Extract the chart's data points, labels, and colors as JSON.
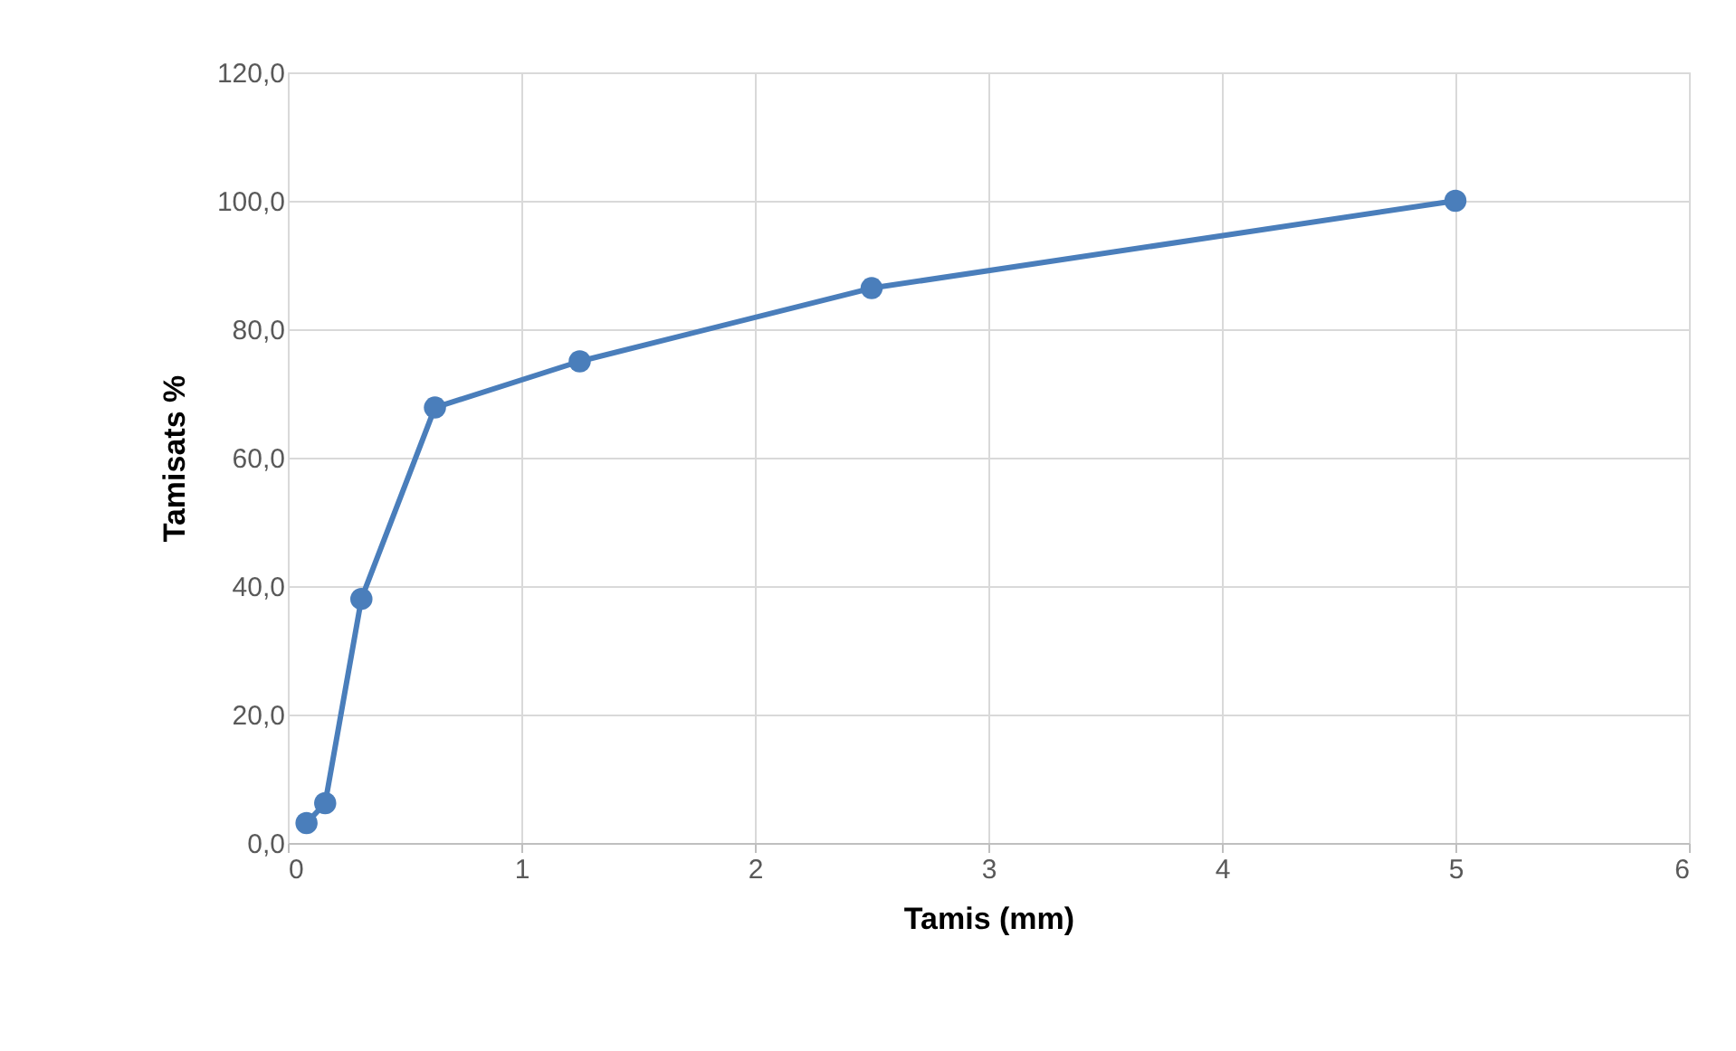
{
  "chart_data": {
    "type": "line",
    "xlabel": "Tamis (mm)",
    "ylabel": "Tamisats %",
    "x": [
      0.08,
      0.16,
      0.315,
      0.63,
      1.25,
      2.5,
      5
    ],
    "series": [
      {
        "color": "#4a7ebb",
        "values": [
          3.1,
          6.2,
          38.0,
          67.8,
          75.0,
          86.4,
          100.0
        ]
      }
    ],
    "xlim": [
      0,
      6
    ],
    "xticks": [
      0,
      1,
      2,
      3,
      4,
      5,
      6
    ],
    "ylim": [
      0,
      120
    ],
    "yticks": [
      {
        "value": 0,
        "label": "0,0"
      },
      {
        "value": 20,
        "label": "20,0"
      },
      {
        "value": 40,
        "label": "40,0"
      },
      {
        "value": 60,
        "label": "60,0"
      },
      {
        "value": 80,
        "label": "80,0"
      },
      {
        "value": 100,
        "label": "100,0"
      },
      {
        "value": 120,
        "label": "120,0"
      }
    ],
    "grid": true,
    "marker": "circle",
    "line_style": "solid",
    "legend": false
  }
}
